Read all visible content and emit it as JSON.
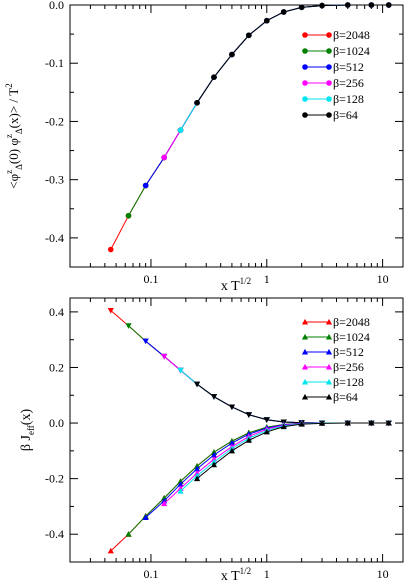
{
  "chart_data": [
    {
      "type": "line",
      "xscale": "log",
      "xlabel_main": "x T",
      "xlabel_sup": "1/2",
      "ylabel": "<φ^z_Δ(0) φ^z_Δ(x)> / T^2",
      "xlim": [
        0.02,
        15
      ],
      "ylim": [
        -0.45,
        0.0
      ],
      "xticks": [
        0.1,
        1,
        10
      ],
      "xtick_labels": [
        "0.1",
        "1",
        "10"
      ],
      "yticks": [
        0.0,
        -0.1,
        -0.2,
        -0.3,
        -0.4
      ],
      "ytick_labels": [
        "0.0",
        "-0.1",
        "-0.2",
        "-0.3",
        "-0.4"
      ],
      "grid": false,
      "legend_position": "top-right",
      "series": [
        {
          "name": "β=2048",
          "color": "#ff0000",
          "marker": "circle",
          "x": [
            0.045,
            0.064,
            0.09,
            0.13,
            0.18,
            0.25,
            0.35,
            0.5,
            0.7,
            1.0,
            1.4,
            2.0,
            3.0,
            5.0,
            8.0,
            11.3
          ],
          "y": [
            -0.42,
            -0.362,
            -0.31,
            -0.262,
            -0.215,
            -0.168,
            -0.124,
            -0.085,
            -0.052,
            -0.027,
            -0.012,
            -0.004,
            -0.001,
            0.0,
            0.0,
            0.0
          ]
        },
        {
          "name": "β=1024",
          "color": "#008000",
          "marker": "circle",
          "x": [
            0.064,
            0.09,
            0.13,
            0.18,
            0.25,
            0.35,
            0.5,
            0.7,
            1.0,
            1.4,
            2.0,
            3.0,
            5.0,
            8.0,
            11.3
          ],
          "y": [
            -0.362,
            -0.31,
            -0.262,
            -0.215,
            -0.168,
            -0.124,
            -0.085,
            -0.052,
            -0.027,
            -0.012,
            -0.004,
            -0.001,
            0.0,
            0.0,
            0.0
          ]
        },
        {
          "name": "β=512",
          "color": "#0000ff",
          "marker": "circle",
          "x": [
            0.09,
            0.13,
            0.18,
            0.25,
            0.35,
            0.5,
            0.7,
            1.0,
            1.4,
            2.0,
            3.0,
            5.0,
            8.0,
            11.3
          ],
          "y": [
            -0.31,
            -0.262,
            -0.215,
            -0.168,
            -0.124,
            -0.085,
            -0.052,
            -0.027,
            -0.012,
            -0.004,
            -0.001,
            0.0,
            0.0,
            0.0
          ]
        },
        {
          "name": "β=256",
          "color": "#ff00ff",
          "marker": "circle",
          "x": [
            0.13,
            0.18,
            0.25,
            0.35,
            0.5,
            0.7,
            1.0,
            1.4,
            2.0,
            3.0,
            5.0,
            8.0,
            11.3
          ],
          "y": [
            -0.262,
            -0.215,
            -0.168,
            -0.124,
            -0.085,
            -0.052,
            -0.027,
            -0.012,
            -0.004,
            -0.001,
            0.0,
            0.0,
            0.0
          ]
        },
        {
          "name": "β=128",
          "color": "#00e5ee",
          "marker": "circle",
          "x": [
            0.18,
            0.25,
            0.35,
            0.5,
            0.7,
            1.0,
            1.4,
            2.0,
            3.0,
            5.0,
            8.0,
            11.3
          ],
          "y": [
            -0.215,
            -0.168,
            -0.124,
            -0.085,
            -0.052,
            -0.027,
            -0.012,
            -0.004,
            -0.001,
            0.0,
            0.0,
            0.0
          ]
        },
        {
          "name": "β=64",
          "color": "#000000",
          "marker": "circle",
          "x": [
            0.25,
            0.35,
            0.5,
            0.7,
            1.0,
            1.4,
            2.0,
            3.0,
            5.0,
            8.0,
            11.3
          ],
          "y": [
            -0.168,
            -0.124,
            -0.085,
            -0.052,
            -0.027,
            -0.012,
            -0.004,
            -0.001,
            0.0,
            0.0,
            0.0
          ]
        }
      ]
    },
    {
      "type": "line",
      "xscale": "log",
      "xlabel_main": "x T",
      "xlabel_sup": "1/2",
      "ylabel": "β J_eff(x)",
      "xlim": [
        0.02,
        15
      ],
      "ylim": [
        -0.5,
        0.45
      ],
      "xticks": [
        0.1,
        1,
        10
      ],
      "xtick_labels": [
        "0.1",
        "1",
        "10"
      ],
      "yticks": [
        0.4,
        0.2,
        0.0,
        -0.2,
        -0.4
      ],
      "ytick_labels": [
        "0.4",
        "0.2",
        "0.0",
        "-0.2",
        "-0.4"
      ],
      "grid": false,
      "legend_position": "top-right",
      "series": [
        {
          "name": "β=2048",
          "color": "#ff0000",
          "marker": "triangle-up",
          "x": [
            0.045,
            0.064,
            0.09,
            0.13,
            0.18,
            0.25,
            0.35,
            0.5,
            0.7,
            1.0,
            1.4,
            2.0,
            3.0,
            5.0,
            8.0,
            11.3
          ],
          "y": [
            -0.46,
            -0.4,
            -0.335,
            -0.27,
            -0.21,
            -0.155,
            -0.105,
            -0.065,
            -0.035,
            -0.015,
            -0.005,
            -0.001,
            0.0,
            0.0,
            0.0,
            0.0
          ]
        },
        {
          "name": "β=1024",
          "color": "#008000",
          "marker": "triangle-up",
          "x": [
            0.064,
            0.09,
            0.13,
            0.18,
            0.25,
            0.35,
            0.5,
            0.7,
            1.0,
            1.4,
            2.0,
            3.0,
            5.0,
            8.0,
            11.3
          ],
          "y": [
            -0.4,
            -0.335,
            -0.27,
            -0.21,
            -0.155,
            -0.105,
            -0.065,
            -0.035,
            -0.015,
            -0.005,
            -0.001,
            0.0,
            0.0,
            0.0,
            0.0
          ]
        },
        {
          "name": "β=512",
          "color": "#0000ff",
          "marker": "triangle-up",
          "x": [
            0.09,
            0.13,
            0.18,
            0.25,
            0.35,
            0.5,
            0.7,
            1.0,
            1.4,
            2.0,
            3.0,
            5.0,
            8.0,
            11.3
          ],
          "y": [
            -0.34,
            -0.28,
            -0.22,
            -0.165,
            -0.115,
            -0.072,
            -0.04,
            -0.018,
            -0.006,
            -0.001,
            0.0,
            0.0,
            0.0,
            0.0
          ]
        },
        {
          "name": "β=256",
          "color": "#ff00ff",
          "marker": "triangle-up",
          "x": [
            0.13,
            0.18,
            0.25,
            0.35,
            0.5,
            0.7,
            1.0,
            1.4,
            2.0,
            3.0,
            5.0,
            8.0,
            11.3
          ],
          "y": [
            -0.29,
            -0.235,
            -0.18,
            -0.13,
            -0.085,
            -0.048,
            -0.022,
            -0.008,
            -0.002,
            0.0,
            0.0,
            0.0,
            0.0
          ]
        },
        {
          "name": "β=128",
          "color": "#00e5ee",
          "marker": "triangle-up",
          "x": [
            0.18,
            0.25,
            0.35,
            0.5,
            0.7,
            1.0,
            1.4,
            2.0,
            3.0,
            5.0,
            8.0,
            11.3
          ],
          "y": [
            -0.245,
            -0.19,
            -0.14,
            -0.092,
            -0.055,
            -0.027,
            -0.01,
            -0.003,
            0.0,
            0.0,
            0.0,
            0.0
          ]
        },
        {
          "name": "β=64",
          "color": "#000000",
          "marker": "triangle-up",
          "x": [
            0.25,
            0.35,
            0.5,
            0.7,
            1.0,
            1.4,
            2.0,
            3.0,
            5.0,
            8.0,
            11.3
          ],
          "y": [
            -0.2,
            -0.15,
            -0.1,
            -0.062,
            -0.032,
            -0.013,
            -0.004,
            -0.001,
            0.0,
            0.0,
            0.0
          ]
        }
      ],
      "upper_branch": {
        "color": "#ff0000",
        "marker": "triangle-down",
        "x": [
          0.045,
          0.064,
          0.09,
          0.13,
          0.18,
          0.25,
          0.35,
          0.5,
          0.7,
          1.0,
          1.4,
          2.0,
          3.0,
          5.0,
          8.0,
          11.3
        ],
        "y": [
          0.405,
          0.35,
          0.295,
          0.24,
          0.19,
          0.14,
          0.095,
          0.058,
          0.03,
          0.012,
          0.004,
          0.001,
          0.0,
          0.0,
          0.0,
          0.0
        ],
        "overlay_colors": [
          "#008000",
          "#0000ff",
          "#ff00ff",
          "#00e5ee",
          "#000000"
        ]
      }
    }
  ]
}
